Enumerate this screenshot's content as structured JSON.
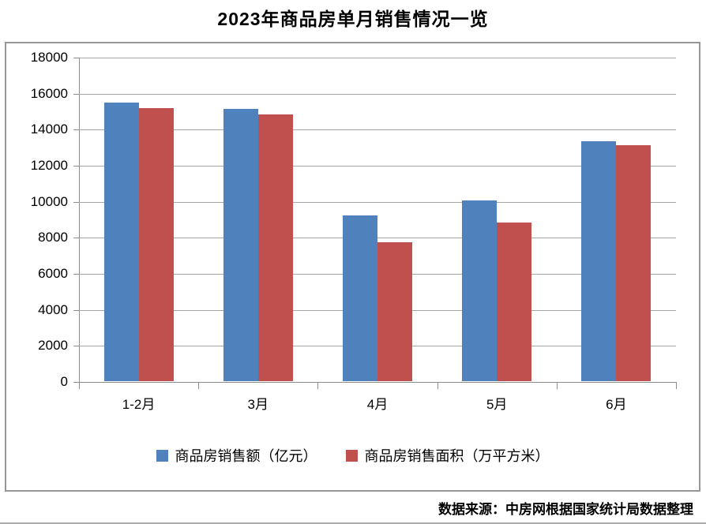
{
  "source_note": "数据来源：中房网根据国家统计局数据整理",
  "colors": {
    "sales_blue": "#4F81BD",
    "area_red": "#C0504D",
    "gridline": "#A6A6A6",
    "axis": "#8C8C8C",
    "box_border": "#969696"
  },
  "chart_data": {
    "type": "bar",
    "title": "2023年商品房单月销售情况一览",
    "categories": [
      "1-2月",
      "3月",
      "4月",
      "5月",
      "6月"
    ],
    "series": [
      {
        "name": "商品房销售额（亿元）",
        "color": "#4F81BD",
        "values": [
          15449,
          15097,
          9205,
          10037,
          13305
        ]
      },
      {
        "name": "商品房销售面积（万平方米）",
        "color": "#C0504D",
        "values": [
          15133,
          14813,
          7690,
          8804,
          13075
        ]
      }
    ],
    "xlabel": "",
    "ylabel": "",
    "ylim": [
      0,
      18000
    ],
    "ytick_interval": 2000,
    "yticks": [
      0,
      2000,
      4000,
      6000,
      8000,
      10000,
      12000,
      14000,
      16000,
      18000
    ],
    "grid": true,
    "legend_position": "bottom"
  }
}
